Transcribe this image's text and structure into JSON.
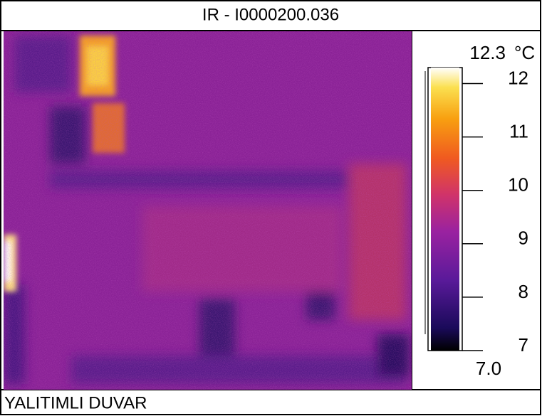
{
  "title": "IR - I0000200.036",
  "caption": "YALITIMLI DUVAR",
  "scale": {
    "max": 12.3,
    "unit": "°C",
    "min": {
      "value": 7,
      "label": "7.0"
    },
    "ticks": [
      7,
      8,
      9,
      10,
      11,
      12
    ]
  }
}
